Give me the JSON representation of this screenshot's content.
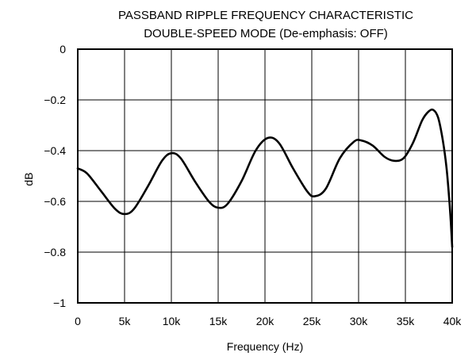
{
  "chart_data": {
    "type": "line",
    "title": "PASSBAND RIPPLE FREQUENCY CHARACTERISTIC",
    "subtitle": "DOUBLE-SPEED MODE (De-emphasis: OFF)",
    "xlabel": "Frequency (Hz)",
    "ylabel": "dB",
    "xlim": [
      0,
      40000
    ],
    "ylim": [
      -1,
      0
    ],
    "grid": true,
    "x_ticks": [
      0,
      5000,
      10000,
      15000,
      20000,
      25000,
      30000,
      35000,
      40000
    ],
    "x_tick_labels": [
      "0",
      "5k",
      "10k",
      "15k",
      "20k",
      "25k",
      "30k",
      "35k",
      "40k"
    ],
    "y_ticks": [
      0,
      -0.2,
      -0.4,
      -0.6,
      -0.8,
      -1
    ],
    "y_tick_labels": [
      "0",
      "−0.2",
      "−0.4",
      "−0.6",
      "−0.8",
      "−1"
    ],
    "series": [
      {
        "x": [
          0,
          1000,
          2500,
          4000,
          5000,
          6000,
          7500,
          9000,
          10000,
          11000,
          12500,
          14000,
          15000,
          16000,
          17500,
          19000,
          20300,
          21500,
          23000,
          24500,
          25300,
          26500,
          28000,
          29500,
          30300,
          31500,
          32800,
          33800,
          34800,
          35800,
          36800,
          37500,
          38000,
          38500,
          39000,
          39400,
          39700,
          39850,
          40000
        ],
        "y": [
          -0.47,
          -0.49,
          -0.56,
          -0.63,
          -0.65,
          -0.63,
          -0.54,
          -0.44,
          -0.41,
          -0.43,
          -0.52,
          -0.6,
          -0.625,
          -0.61,
          -0.52,
          -0.4,
          -0.35,
          -0.37,
          -0.47,
          -0.56,
          -0.58,
          -0.55,
          -0.43,
          -0.365,
          -0.36,
          -0.38,
          -0.425,
          -0.44,
          -0.43,
          -0.37,
          -0.28,
          -0.245,
          -0.24,
          -0.27,
          -0.36,
          -0.47,
          -0.6,
          -0.68,
          -0.78
        ]
      }
    ]
  }
}
